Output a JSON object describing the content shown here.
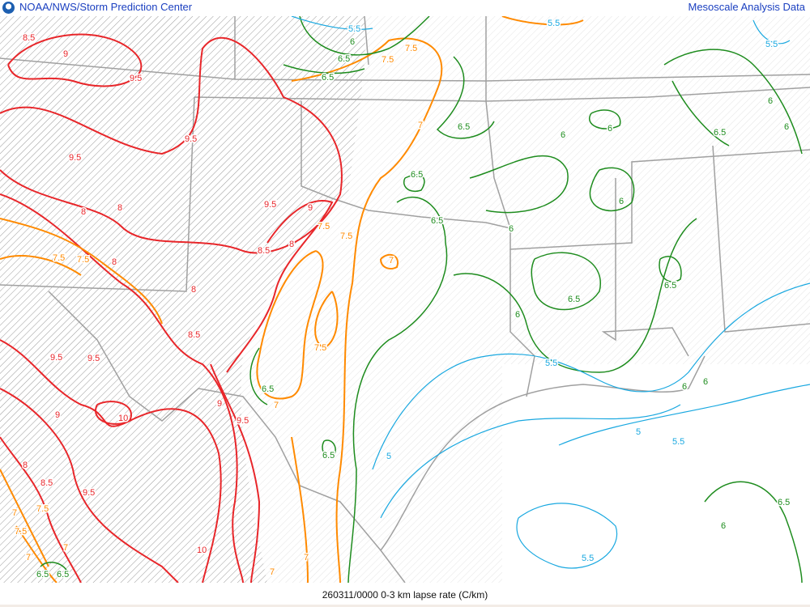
{
  "header": {
    "left_title": "NOAA/NWS/Storm Prediction Center",
    "right_title": "Mesoscale Analysis Data",
    "logo": "noaa-logo"
  },
  "footer": {
    "caption": "260311/0000 0-3 km lapse rate (C/km)"
  },
  "colors": {
    "red": "#e8262a",
    "orange": "#ff8a00",
    "green": "#1e8c1e",
    "blue": "#19a8e0",
    "border": "#a0a0a0",
    "title": "#1a3fc0"
  },
  "map": {
    "field": "0-3 km lapse rate",
    "units": "C/km",
    "hatched_threshold": "8",
    "contour_labels": [
      "8.5",
      "9",
      "9.5",
      "9.5",
      "9.5",
      "8",
      "8",
      "9.5",
      "9",
      "8.5",
      "8",
      "7.5",
      "7.5",
      "7.5",
      "8",
      "8",
      "8.5",
      "9.5",
      "9.5",
      "9",
      "10",
      "9.5",
      "9",
      "9.5",
      "8.5",
      "8",
      "7.5",
      "7",
      "7.5",
      "7",
      "6.5",
      "6.5",
      "7",
      "10",
      "7",
      "7",
      "7.5",
      "7.5",
      "7",
      "7",
      "6.5",
      "6.5",
      "6.5",
      "6.5",
      "5.5",
      "6",
      "6.5",
      "6.5",
      "7.5",
      "7.5",
      "7",
      "5.5",
      "5",
      "5.5",
      "5",
      "5.5",
      "5.5",
      "6",
      "6",
      "6",
      "6",
      "6.5",
      "6.5",
      "6",
      "6.5",
      "6",
      "6",
      "6.5",
      "6.5",
      "6",
      "5.5",
      "6",
      "6"
    ]
  }
}
